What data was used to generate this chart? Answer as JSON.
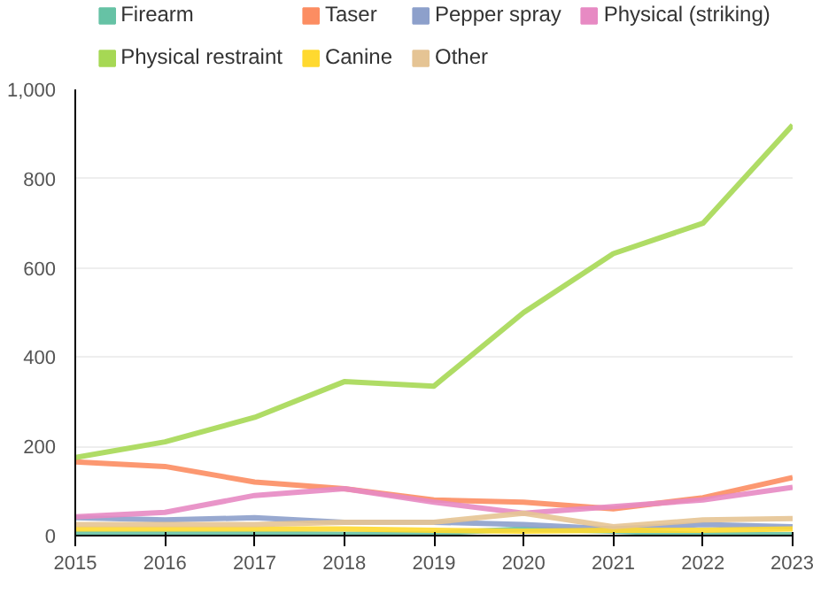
{
  "chart_data": {
    "type": "line",
    "x": [
      2015,
      2016,
      2017,
      2018,
      2019,
      2020,
      2021,
      2022,
      2023
    ],
    "xlim": [
      2015,
      2023
    ],
    "xticks": [
      2015,
      2016,
      2017,
      2018,
      2019,
      2020,
      2021,
      2022,
      2023
    ],
    "ylim": [
      0,
      1000
    ],
    "yticks": [
      0,
      200,
      400,
      600,
      800,
      {
        "value": 1000,
        "label": "1,000"
      }
    ],
    "grid": "y",
    "legend": "top",
    "marker": "none",
    "line_style": "solid",
    "series": [
      {
        "name": "Firearm",
        "color": "#66c2a5",
        "values": [
          5,
          5,
          5,
          3,
          5,
          15,
          10,
          2,
          2
        ]
      },
      {
        "name": "Taser",
        "color": "#fc8d62",
        "values": [
          165,
          155,
          120,
          105,
          80,
          75,
          60,
          85,
          130
        ]
      },
      {
        "name": "Pepper spray",
        "color": "#8da0cb",
        "values": [
          40,
          35,
          40,
          30,
          30,
          25,
          15,
          25,
          20
        ]
      },
      {
        "name": "Physical (striking)",
        "color": "#e78ac3",
        "values": [
          42,
          52,
          90,
          105,
          75,
          50,
          65,
          80,
          108
        ]
      },
      {
        "name": "Physical restraint",
        "color": "#a6d854",
        "values": [
          175,
          210,
          265,
          345,
          335,
          500,
          632,
          700,
          920
        ]
      },
      {
        "name": "Canine",
        "color": "#ffd92f",
        "values": [
          15,
          15,
          15,
          15,
          12,
          10,
          12,
          12,
          15
        ]
      },
      {
        "name": "Other",
        "color": "#e5c494",
        "values": [
          25,
          25,
          25,
          30,
          30,
          50,
          20,
          35,
          38
        ]
      }
    ]
  }
}
